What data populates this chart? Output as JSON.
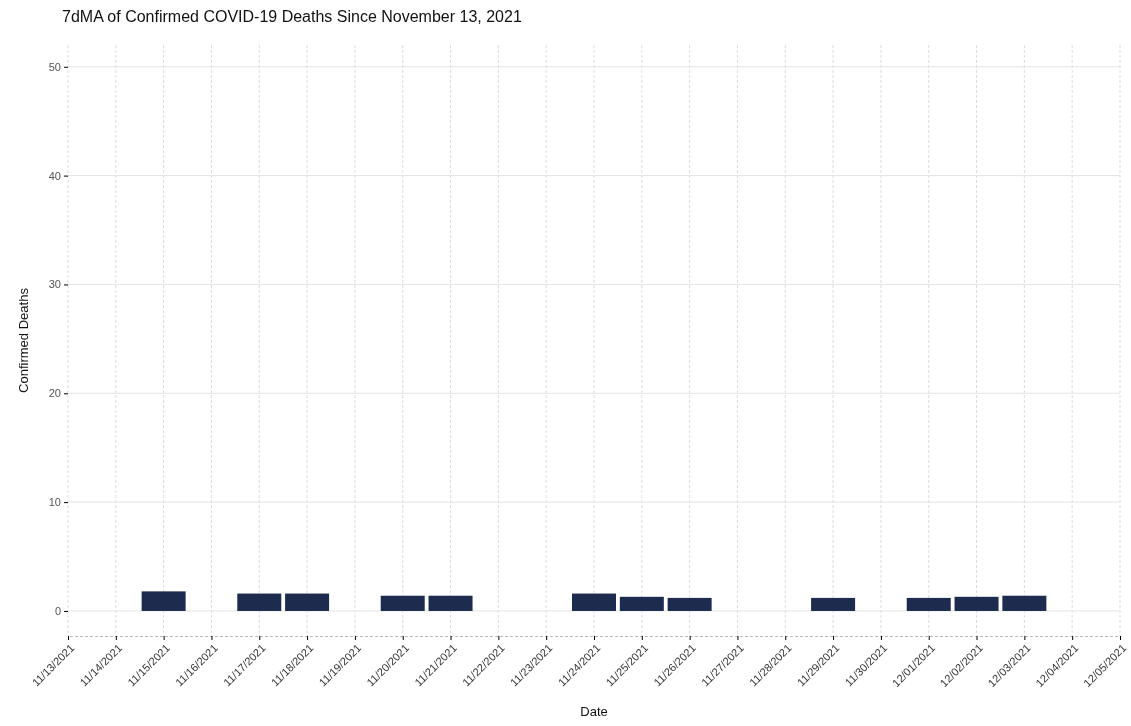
{
  "chart_data": {
    "type": "bar",
    "title": "7dMA of Confirmed COVID-19 Deaths Since November 13, 2021",
    "xlabel": "Date",
    "ylabel": "Confirmed Deaths",
    "categories": [
      "11/13/2021",
      "11/14/2021",
      "11/15/2021",
      "11/16/2021",
      "11/17/2021",
      "11/18/2021",
      "11/19/2021",
      "11/20/2021",
      "11/21/2021",
      "11/22/2021",
      "11/23/2021",
      "11/24/2021",
      "11/25/2021",
      "11/26/2021",
      "11/27/2021",
      "11/28/2021",
      "11/29/2021",
      "11/30/2021",
      "12/01/2021",
      "12/02/2021",
      "12/03/2021",
      "12/04/2021",
      "12/05/2021"
    ],
    "series": [
      {
        "color": "#1c2b4e",
        "values": [
          null,
          null,
          1.8,
          null,
          1.6,
          1.6,
          null,
          1.4,
          1.4,
          null,
          null,
          1.6,
          1.3,
          1.2,
          null,
          null,
          1.2,
          null,
          1.2,
          1.3,
          1.4,
          null,
          null
        ]
      }
    ],
    "ylim": [
      -2.3,
      52
    ],
    "yticks": [
      0,
      10,
      20,
      30,
      40,
      50
    ],
    "grid": true
  }
}
